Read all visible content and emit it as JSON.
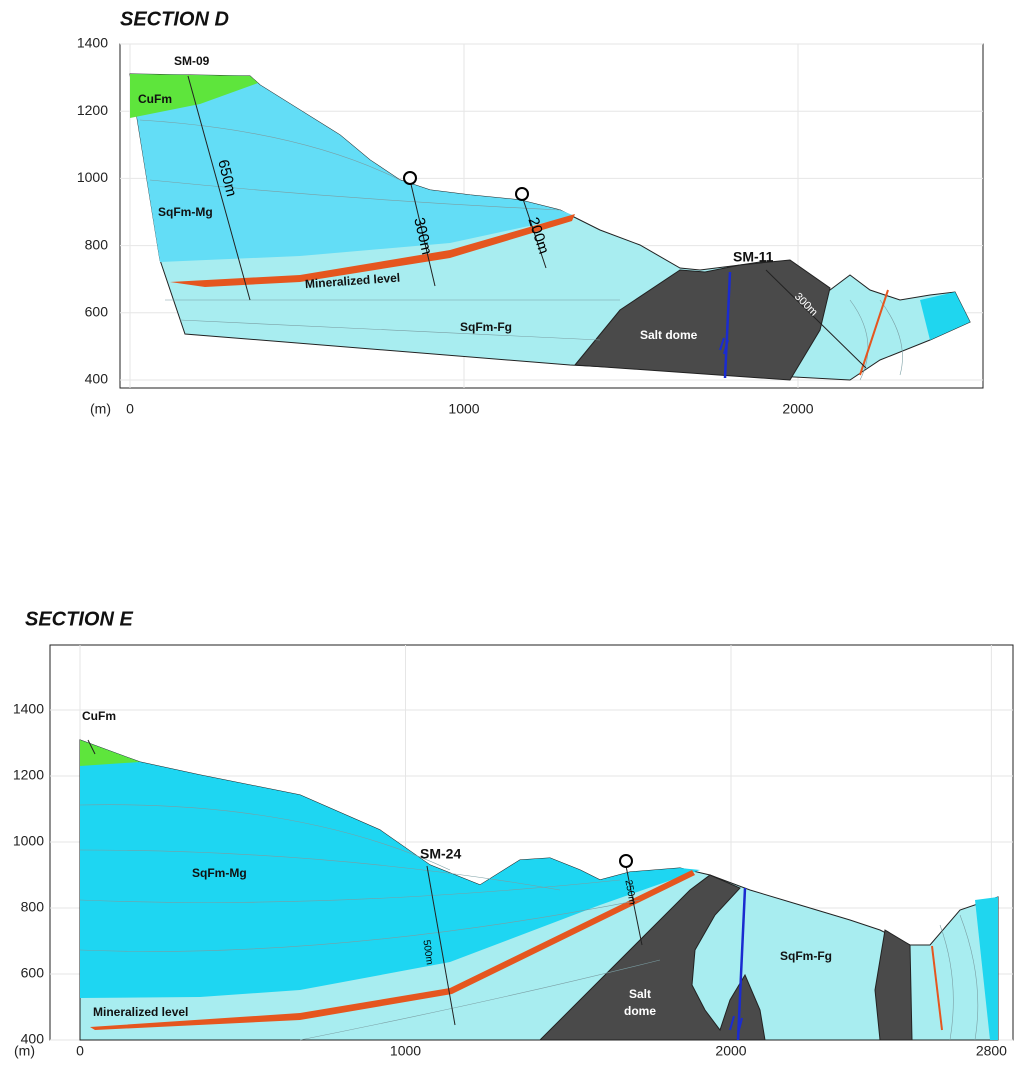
{
  "sections": [
    {
      "title": "SECTION D",
      "unit": "(m)",
      "yticks": [
        1400,
        1200,
        1000,
        800,
        600,
        400
      ],
      "xticks": [
        0,
        1000,
        2000
      ],
      "labels": {
        "cufm": "CuFm",
        "sqfm_mg": "SqFm-Mg",
        "sqfm_fg": "SqFm-Fg",
        "mineralized": "Mineralized level",
        "salt": "Salt dome",
        "sm09": "SM-09",
        "sm09_depth": "650m",
        "hole2_depth": "300m",
        "hole3_depth": "200m",
        "sm11": "SM-11",
        "sm11_depth": "300m"
      }
    },
    {
      "title": "SECTION E",
      "unit": "(m)",
      "yticks": [
        1400,
        1200,
        1000,
        800,
        600,
        400
      ],
      "xticks": [
        0,
        1000,
        2000,
        2800
      ],
      "labels": {
        "cufm": "CuFm",
        "sqfm_mg": "SqFm-Mg",
        "sqfm_fg": "SqFm-Fg",
        "mineralized": "Mineralized level",
        "salt_1": "Salt",
        "salt_2": "dome",
        "sm24": "SM-24",
        "sm24_depth": "500m",
        "hole2_depth": "250m"
      }
    }
  ]
}
